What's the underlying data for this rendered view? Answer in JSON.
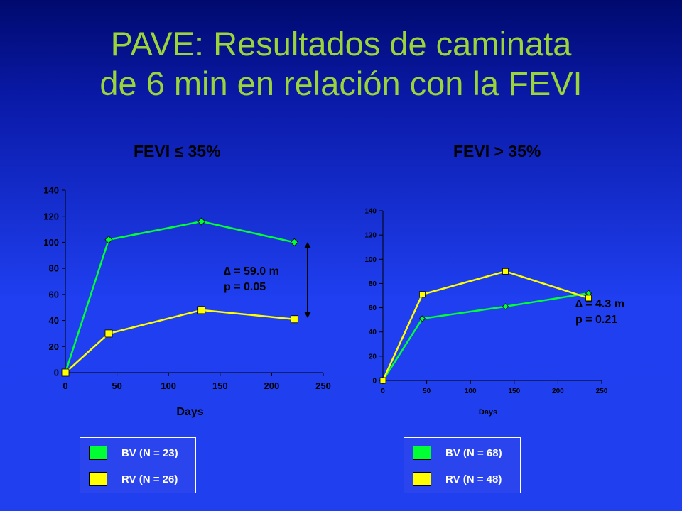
{
  "title": {
    "line1": "PAVE: Resultados de caminata",
    "line2": "de 6 min en relación con la FEVI"
  },
  "colors": {
    "bv": "#00ff33",
    "rv": "#ffff00",
    "title": "#9ad43a"
  },
  "chart_data": [
    {
      "type": "line",
      "heading": "FEVI ≤ 35%",
      "xlabel": "Days",
      "ylabel": "",
      "xlim": [
        0,
        250
      ],
      "ylim": [
        0,
        140
      ],
      "xticks": [
        0,
        50,
        100,
        150,
        200,
        250
      ],
      "yticks": [
        0,
        20,
        40,
        60,
        80,
        100,
        120,
        140
      ],
      "series": [
        {
          "name": "BV (N = 23)",
          "color": "#00ff33",
          "marker": "diamond",
          "x": [
            0,
            42,
            132,
            222
          ],
          "y": [
            0,
            102,
            116,
            100
          ]
        },
        {
          "name": "RV (N = 26)",
          "color": "#ffff00",
          "marker": "square",
          "x": [
            0,
            42,
            132,
            222
          ],
          "y": [
            0,
            30,
            48,
            41
          ]
        }
      ],
      "annotation": {
        "line1": "∆ = 59.0 m",
        "line2": "p = 0.05"
      }
    },
    {
      "type": "line",
      "heading": "FEVI > 35%",
      "xlabel": "Days",
      "ylabel": "",
      "xlim": [
        0,
        250
      ],
      "ylim": [
        0,
        140
      ],
      "xticks": [
        0,
        50,
        100,
        150,
        200,
        250
      ],
      "yticks": [
        0,
        20,
        40,
        60,
        80,
        100,
        120,
        140
      ],
      "series": [
        {
          "name": "BV (N = 68)",
          "color": "#00ff33",
          "marker": "diamond",
          "x": [
            0,
            45,
            140,
            235
          ],
          "y": [
            0,
            51,
            61,
            72
          ]
        },
        {
          "name": "RV (N = 48)",
          "color": "#ffff00",
          "marker": "square",
          "x": [
            0,
            45,
            140,
            235
          ],
          "y": [
            0,
            71,
            90,
            68
          ]
        }
      ],
      "annotation": {
        "line1": "∆ = 4.3 m",
        "line2": "p = 0.21"
      }
    }
  ]
}
